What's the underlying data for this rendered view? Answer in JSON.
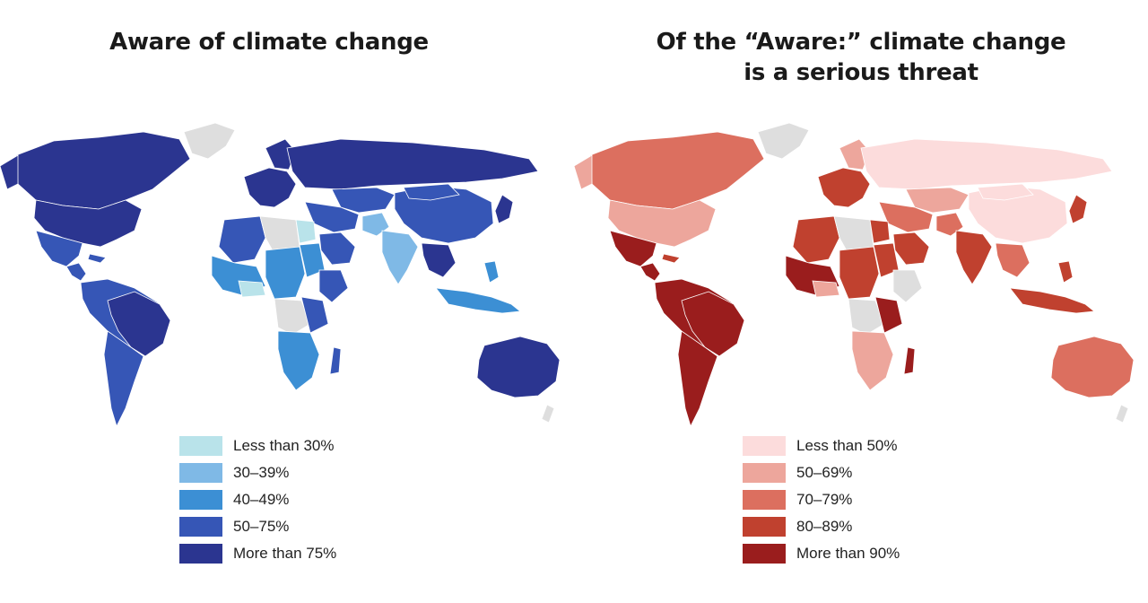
{
  "maps": [
    {
      "title_line1": "Aware of climate change",
      "title_line2": "",
      "legend": [
        {
          "label": "Less than 30%",
          "color": "#b9e3ea"
        },
        {
          "label": "30–39%",
          "color": "#7fb9e6"
        },
        {
          "label": "40–49%",
          "color": "#3c8fd4"
        },
        {
          "label": "50–75%",
          "color": "#3656b6"
        },
        {
          "label": "More than 75%",
          "color": "#2b3590"
        }
      ],
      "no_data_color": "#dedede"
    },
    {
      "title_line1": "Of the “Aware:” climate change",
      "title_line2": "is a serious threat",
      "legend": [
        {
          "label": "Less than 50%",
          "color": "#fcdcdc"
        },
        {
          "label": "50–69%",
          "color": "#eda69c"
        },
        {
          "label": "70–79%",
          "color": "#dc6f5f"
        },
        {
          "label": "80–89%",
          "color": "#c0412f"
        },
        {
          "label": "More than 90%",
          "color": "#9a1d1d"
        }
      ],
      "no_data_color": "#dedede"
    }
  ]
}
